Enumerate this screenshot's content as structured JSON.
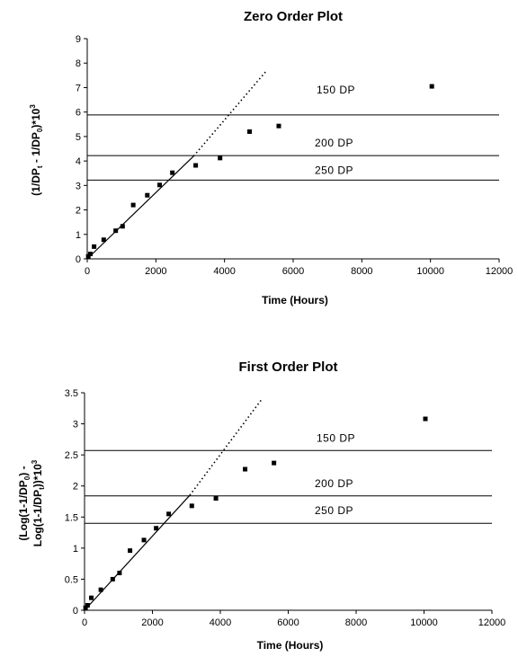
{
  "chart_data": [
    {
      "type": "scatter",
      "title": "Zero Order Plot",
      "xlabel": "Time (Hours)",
      "ylabel": [
        "(1/DP",
        "t",
        " - 1/DP",
        "0",
        ")*10",
        "3"
      ],
      "xlim": [
        0,
        12000
      ],
      "ylim": [
        0,
        9
      ],
      "xticks": [
        "0",
        "2000",
        "4000",
        "6000",
        "8000",
        "10000",
        "12000"
      ],
      "yticks": [
        "0",
        "1",
        "2",
        "3",
        "4",
        "5",
        "6",
        "7",
        "8",
        "9"
      ],
      "grid": false,
      "points": [
        [
          30,
          0.1
        ],
        [
          90,
          0.2
        ],
        [
          200,
          0.5
        ],
        [
          480,
          0.78
        ],
        [
          830,
          1.15
        ],
        [
          1030,
          1.33
        ],
        [
          1340,
          2.2
        ],
        [
          1750,
          2.6
        ],
        [
          2110,
          3.02
        ],
        [
          2480,
          3.52
        ],
        [
          3160,
          3.82
        ],
        [
          3870,
          4.12
        ],
        [
          4730,
          5.2
        ],
        [
          5580,
          5.43
        ],
        [
          10040,
          7.05
        ]
      ],
      "fit_line": {
        "x": [
          0,
          3100
        ],
        "y": [
          0,
          4.2
        ]
      },
      "fit_extension": {
        "x": [
          3100,
          5200
        ],
        "y": [
          4.2,
          7.65
        ]
      },
      "reference_lines": [
        {
          "label": "150 DP",
          "y": 5.88
        },
        {
          "label": "200 DP",
          "y": 4.22
        },
        {
          "label": "250 DP",
          "y": 3.22
        }
      ]
    },
    {
      "type": "scatter",
      "title": "First Order Plot",
      "xlabel": "Time (Hours)",
      "ylabel": [
        "(Log(1-1/DP",
        "0",
        ") -",
        "Log(1-1/DP",
        "t",
        "))*10",
        "3"
      ],
      "xlim": [
        0,
        12000
      ],
      "ylim": [
        0,
        3.5
      ],
      "xticks": [
        "0",
        "2000",
        "4000",
        "6000",
        "8000",
        "10000",
        "12000"
      ],
      "yticks": [
        "0",
        "0.5",
        "1",
        "1.5",
        "2",
        "2.5",
        "3",
        "3.5"
      ],
      "grid": false,
      "points": [
        [
          30,
          0.04
        ],
        [
          90,
          0.08
        ],
        [
          200,
          0.2
        ],
        [
          480,
          0.33
        ],
        [
          830,
          0.5
        ],
        [
          1030,
          0.6
        ],
        [
          1340,
          0.96
        ],
        [
          1750,
          1.13
        ],
        [
          2110,
          1.32
        ],
        [
          2480,
          1.55
        ],
        [
          3160,
          1.68
        ],
        [
          3870,
          1.8
        ],
        [
          4730,
          2.27
        ],
        [
          5580,
          2.37
        ],
        [
          10040,
          3.08
        ]
      ],
      "fit_line": {
        "x": [
          0,
          3100
        ],
        "y": [
          0,
          1.85
        ]
      },
      "fit_extension": {
        "x": [
          3100,
          5200
        ],
        "y": [
          1.85,
          3.38
        ]
      },
      "reference_lines": [
        {
          "label": "150 DP",
          "y": 2.57
        },
        {
          "label": "200 DP",
          "y": 1.84
        },
        {
          "label": "250 DP",
          "y": 1.4
        }
      ]
    }
  ]
}
